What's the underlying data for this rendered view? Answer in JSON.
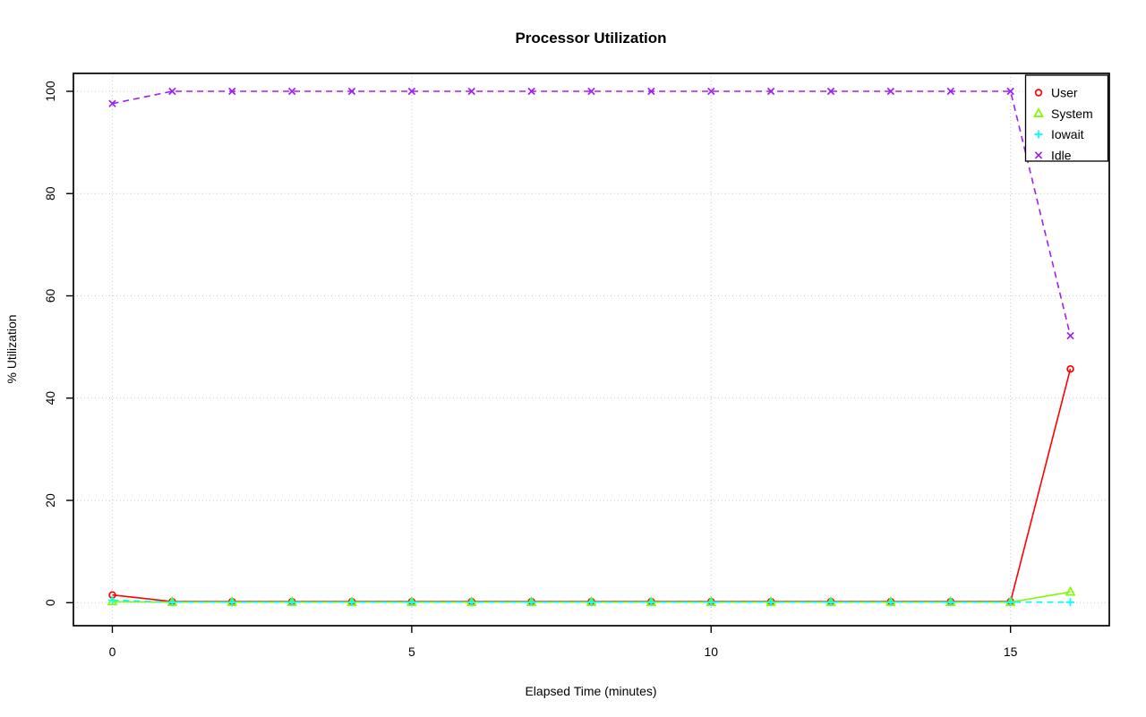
{
  "chart_data": {
    "type": "line",
    "title": "Processor Utilization",
    "xlabel": "Elapsed Time (minutes)",
    "ylabel": "% Utilization",
    "x": [
      0,
      1,
      2,
      3,
      4,
      5,
      6,
      7,
      8,
      9,
      10,
      11,
      12,
      13,
      14,
      15,
      16
    ],
    "xticks": [
      0,
      5,
      10,
      15
    ],
    "yticks": [
      0,
      20,
      40,
      60,
      80,
      100
    ],
    "xlim": [
      -0.65,
      16.65
    ],
    "ylim": [
      -4.5,
      103.5
    ],
    "grid": {
      "on": true,
      "color": "#C8C8C8",
      "style": "dotted"
    },
    "series": [
      {
        "name": "User",
        "color": "#FF0000",
        "marker": "circle",
        "line": "solid",
        "values": [
          1.5,
          0.2,
          0.2,
          0.2,
          0.2,
          0.2,
          0.2,
          0.2,
          0.2,
          0.2,
          0.2,
          0.2,
          0.2,
          0.2,
          0.2,
          0.2,
          45.7
        ]
      },
      {
        "name": "System",
        "color": "#7CFC00",
        "marker": "triangle",
        "line": "solid",
        "values": [
          0.2,
          0.1,
          0.1,
          0.1,
          0.1,
          0.1,
          0.1,
          0.1,
          0.1,
          0.1,
          0.1,
          0.1,
          0.1,
          0.1,
          0.1,
          0.1,
          2.1
        ]
      },
      {
        "name": "Iowait",
        "color": "#00FFFF",
        "marker": "plus",
        "line": "dashed",
        "values": [
          0.5,
          0.1,
          0.1,
          0.1,
          0.1,
          0.1,
          0.1,
          0.1,
          0.1,
          0.1,
          0.1,
          0.1,
          0.1,
          0.1,
          0.1,
          0.1,
          0.1
        ]
      },
      {
        "name": "Idle",
        "color": "#A020F0",
        "marker": "x",
        "line": "dashed",
        "values": [
          97.6,
          100,
          100,
          100,
          100,
          100,
          100,
          100,
          100,
          100,
          100,
          100,
          100,
          100,
          100,
          100,
          52.2
        ]
      }
    ],
    "legend": {
      "position": "top-right",
      "labels": [
        "User",
        "System",
        "Iowait",
        "Idle"
      ]
    }
  }
}
